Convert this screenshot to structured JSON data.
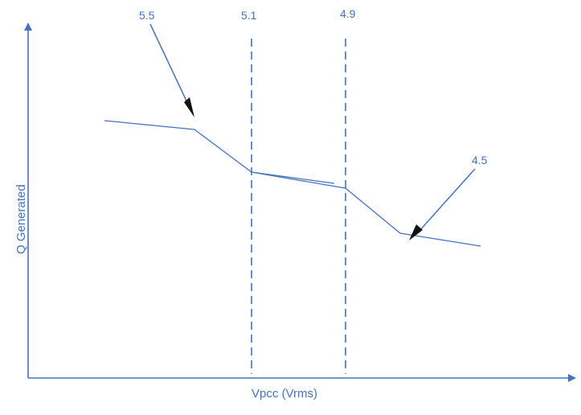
{
  "diagram": {
    "x_axis_label": "Vpcc (Vrms)",
    "y_axis_label": "Q Generated",
    "annotations": {
      "a1": "5.5",
      "a2": "5.1",
      "a3": "4.9",
      "a4": "4.5"
    },
    "colors": {
      "axis": "#4472c4",
      "curve": "#4472c4",
      "text": "#4472c4",
      "arrowhead": "#000000"
    }
  }
}
